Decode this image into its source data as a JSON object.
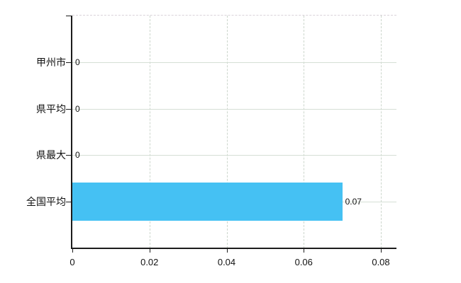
{
  "chart_data": {
    "type": "bar",
    "orientation": "horizontal",
    "title": "",
    "xlabel": "",
    "ylabel": "",
    "categories": [
      "甲州市",
      "県平均",
      "県最大",
      "全国平均"
    ],
    "values": [
      0,
      0,
      0,
      0.07
    ],
    "value_labels": [
      "0",
      "0",
      "0",
      "0.07"
    ],
    "x_ticks": [
      0,
      0.02,
      0.04,
      0.06,
      0.08
    ],
    "x_tick_labels": [
      "0",
      "0.02",
      "0.04",
      "0.06",
      "0.08"
    ],
    "xlim": [
      0,
      0.08
    ],
    "grid": true,
    "legend_position": "none",
    "colors": {
      "bar": "#45c1f3",
      "h_gridline": "#d5dfd5",
      "v_gridline": "#ccd6cc",
      "top_gridline": "#d9d2d9",
      "axis": "#1c1c1c",
      "text": "#111111",
      "background": "#ffffff"
    }
  }
}
